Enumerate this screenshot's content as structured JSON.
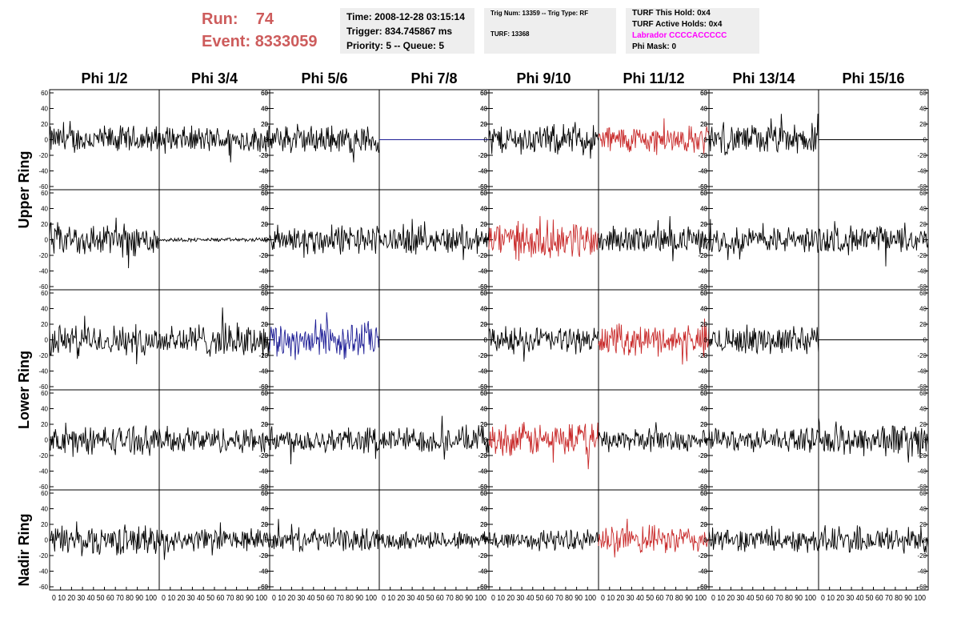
{
  "run_info": {
    "run_label": "Run:",
    "run_value": "74",
    "event_label": "Event:",
    "event_value": "8333059"
  },
  "timing_box": {
    "time": "Time: 2008-12-28 03:15:14",
    "trigger": "Trigger: 834.745867 ms",
    "priority": "Priority: 5 -- Queue: 5"
  },
  "trig_box": {
    "trig": "Trig Num: 13359 -- Trig Type: RF",
    "turf": "TURF: 13368"
  },
  "turf_box": {
    "this_hold": "TURF This Hold: 0x4",
    "active_holds": "TURF Active Holds: 0x4",
    "labrador": "Labrador CCCCACCCCC",
    "phi_mask": "Phi Mask: 0"
  },
  "colors": {
    "header_text": "#cd5c5c",
    "labrador": "#ff00ff",
    "black": "#000000",
    "red": "#c82828",
    "blue": "#1e1e96"
  },
  "ring_labels": {
    "upper": "Upper Ring",
    "lower": "Lower Ring",
    "nadir": "Nadir Ring"
  },
  "chart_data": {
    "type": "line",
    "columns": [
      "Phi 1/2",
      "Phi 3/4",
      "Phi 5/6",
      "Phi 7/8",
      "Phi 9/10",
      "Phi 11/12",
      "Phi 13/14",
      "Phi 15/16"
    ],
    "ylim": [
      -60,
      60
    ],
    "yticks": [
      -60,
      -40,
      -20,
      0,
      20,
      40,
      60
    ],
    "xlim": [
      0,
      100
    ],
    "xticks": [
      0,
      10,
      20,
      30,
      40,
      50,
      60,
      70,
      80,
      90,
      100
    ],
    "x_tick_labels_row": "0 10 20 30 40 50 60 70 80 90 100",
    "rows": [
      {
        "ring": "upper",
        "traces": [
          {
            "color": "black",
            "amp": 15
          },
          {
            "color": "black",
            "amp": 14
          },
          {
            "color": "black",
            "amp": 15
          },
          {
            "color": "blue",
            "amp": 0
          },
          {
            "color": "black",
            "amp": 16
          },
          {
            "color": "red",
            "amp": 15
          },
          {
            "color": "black",
            "amp": 16
          },
          {
            "color": "black",
            "amp": 0
          }
        ]
      },
      {
        "ring": "upper",
        "traces": [
          {
            "color": "black",
            "amp": 18
          },
          {
            "color": "black",
            "amp": 2
          },
          {
            "color": "black",
            "amp": 16
          },
          {
            "color": "black",
            "amp": 15
          },
          {
            "color": "red",
            "amp": 20
          },
          {
            "color": "black",
            "amp": 14
          },
          {
            "color": "black",
            "amp": 14
          },
          {
            "color": "black",
            "amp": 15
          }
        ]
      },
      {
        "ring": "lower",
        "traces": [
          {
            "color": "black",
            "amp": 16
          },
          {
            "color": "black",
            "amp": 18
          },
          {
            "color": "blue",
            "amp": 20
          },
          {
            "color": "black",
            "amp": 0
          },
          {
            "color": "black",
            "amp": 14
          },
          {
            "color": "red",
            "amp": 16
          },
          {
            "color": "black",
            "amp": 15
          },
          {
            "color": "black",
            "amp": 0
          }
        ]
      },
      {
        "ring": "lower",
        "traces": [
          {
            "color": "black",
            "amp": 15
          },
          {
            "color": "black",
            "amp": 14
          },
          {
            "color": "black",
            "amp": 14
          },
          {
            "color": "black",
            "amp": 14
          },
          {
            "color": "red",
            "amp": 18
          },
          {
            "color": "black",
            "amp": 12
          },
          {
            "color": "black",
            "amp": 12
          },
          {
            "color": "black",
            "amp": 18
          }
        ]
      },
      {
        "ring": "nadir",
        "traces": [
          {
            "color": "black",
            "amp": 16
          },
          {
            "color": "black",
            "amp": 12
          },
          {
            "color": "black",
            "amp": 12
          },
          {
            "color": "black",
            "amp": 10
          },
          {
            "color": "black",
            "amp": 11
          },
          {
            "color": "red",
            "amp": 15
          },
          {
            "color": "black",
            "amp": 12
          },
          {
            "color": "black",
            "amp": 15
          }
        ]
      }
    ]
  }
}
